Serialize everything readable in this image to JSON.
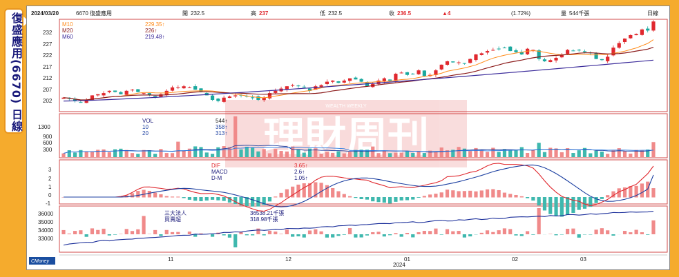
{
  "side_title": "復盛應用(6670) 日線",
  "header": {
    "date": "2024/03/20",
    "stock": "6670 復盛應用",
    "open_label": "開",
    "open": "232.5",
    "high_label": "高",
    "high": "237",
    "low_label": "低",
    "low": "232.5",
    "close_label": "收",
    "close": "236.5",
    "change": "▲4",
    "change_pct": "(1.72%)",
    "volume_label": "量",
    "volume": "544千張",
    "period": "日線"
  },
  "price_panel": {
    "ma10_label": "M10",
    "ma10_value": "229.35↑",
    "ma20_label": "M20",
    "ma20_value": "226↑",
    "ma60_label": "M60",
    "ma60_value": "219.48↑",
    "y_ticks": [
      "232",
      "227",
      "222",
      "217",
      "212",
      "207",
      "202"
    ]
  },
  "volume_panel": {
    "vol_label": "VOL",
    "vol_value": "544↑",
    "ma10_label": "10",
    "ma10_value": "358↑",
    "ma20_label": "20",
    "ma20_value": "313↑",
    "y_ticks": [
      "1300",
      "900",
      "600",
      "300"
    ]
  },
  "macd_panel": {
    "dif_label": "DIF",
    "dif_value": "3.65↑",
    "macd_label": "MACD",
    "macd_value": "2.6↑",
    "dm_label": "D-M",
    "dm_value": "1.05↑",
    "y_ticks": [
      "3",
      "2",
      "1",
      "0",
      "-1"
    ]
  },
  "inst_panel": {
    "label1": "三大法人",
    "value1": "36538.21千張",
    "label2": "買賣超",
    "value2": "318.98千張",
    "y_ticks": [
      "36000",
      "35000",
      "34000",
      "33000"
    ]
  },
  "x_axis": {
    "month_labels": [
      "11",
      "12",
      "01",
      "02",
      "03"
    ],
    "year_label": "2024"
  },
  "watermark": "理財周刊",
  "watermark_sub": "WEALTH WEEKLY",
  "source_logo": "CMoney",
  "colors": {
    "up": "#e0282e",
    "down": "#1aa89e",
    "ma10": "#ff8c1a",
    "ma20": "#8b1a1a",
    "ma60": "#3a2a9a",
    "dif": "#e0282e",
    "macd": "#1a3ea0",
    "inst": "#1a2e9a"
  },
  "chart_data": {
    "type": "candlestick",
    "title": "6670 復盛應用 日線",
    "period": "2023/10 – 2024/03/20",
    "last_bar": {
      "date": "2024/03/20",
      "open": 232.5,
      "high": 237,
      "low": 232.5,
      "close": 236.5,
      "volume": 544
    },
    "close_series": [
      203,
      202.5,
      201.5,
      201,
      202,
      204,
      204.5,
      205,
      206,
      205.5,
      204.5,
      206,
      206.5,
      205.5,
      205,
      204,
      203,
      204.5,
      206,
      207.5,
      207.5,
      208,
      207.5,
      206.5,
      205.5,
      204,
      202,
      201.5,
      203,
      203.5,
      204,
      204,
      203.5,
      203,
      202,
      203,
      205,
      206,
      207,
      208,
      208.5,
      208,
      207.5,
      206,
      208,
      208.5,
      210,
      210.5,
      209.5,
      210.5,
      211.5,
      211,
      210,
      208,
      209,
      210.5,
      211.5,
      210.5,
      213.5,
      214,
      213,
      213.5,
      215,
      212.5,
      213,
      215,
      217.5,
      219,
      218.5,
      218.5,
      218,
      220,
      222,
      222.5,
      223.5,
      224,
      224.5,
      225,
      223.5,
      223,
      222,
      224.5,
      224,
      220,
      219,
      219.5,
      220.5,
      222,
      224,
      223.5,
      224,
      223,
      222.5,
      220,
      219.5,
      221,
      225,
      227,
      229,
      230.5,
      231,
      233,
      232.5,
      236.5
    ],
    "ma10_last": 229.35,
    "ma20_last": 226,
    "ma60_last": 219.48,
    "volume_ylim": [
      0,
      1500
    ],
    "macd_last": {
      "dif": 3.65,
      "macd": 2.6,
      "dm": 1.05
    },
    "inst_last": {
      "total": 36538.21,
      "net": 318.98
    }
  }
}
